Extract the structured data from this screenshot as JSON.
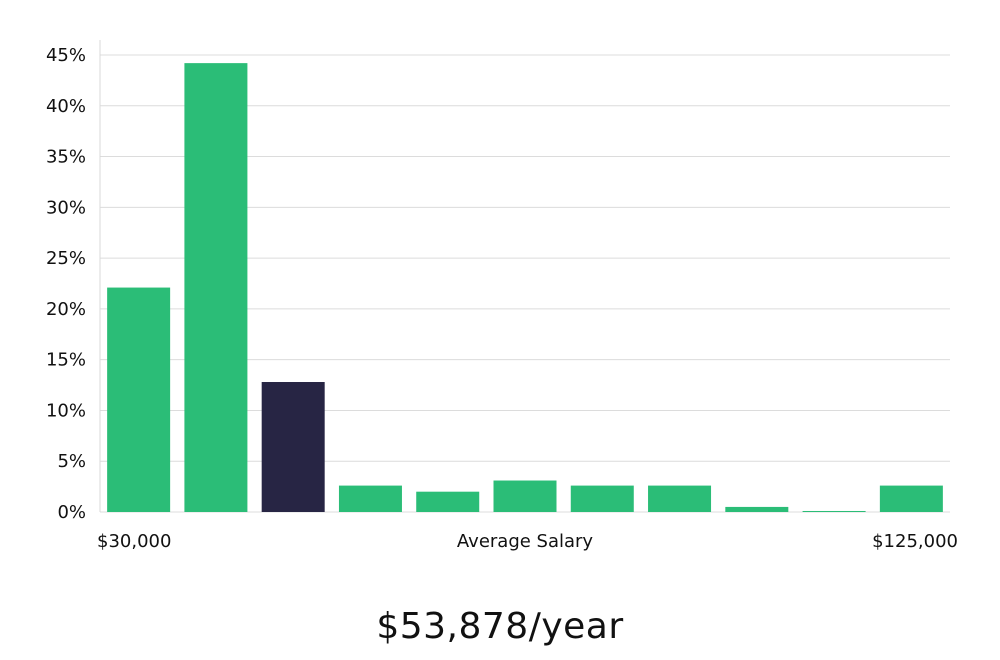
{
  "chart_data": {
    "type": "bar",
    "categories": [
      "",
      "",
      "",
      "",
      "",
      "",
      "",
      "",
      "",
      "",
      ""
    ],
    "values": [
      22.1,
      44.2,
      12.8,
      2.6,
      2.0,
      3.1,
      2.6,
      2.6,
      0.5,
      0.1,
      2.6
    ],
    "highlight_index": 2,
    "y_ticks": [
      "0%",
      "5%",
      "10%",
      "15%",
      "20%",
      "25%",
      "30%",
      "35%",
      "40%",
      "45%"
    ],
    "ylim": [
      0,
      45
    ],
    "x_min_label": "$30,000",
    "x_max_label": "$125,000",
    "xlabel": "Average Salary",
    "grid": true,
    "colors": {
      "bar": "#2bbd77",
      "highlight": "#272544",
      "grid": "#dcdcdc",
      "axis": "#d9d9d9"
    }
  },
  "salary_text": "$53,878/year"
}
